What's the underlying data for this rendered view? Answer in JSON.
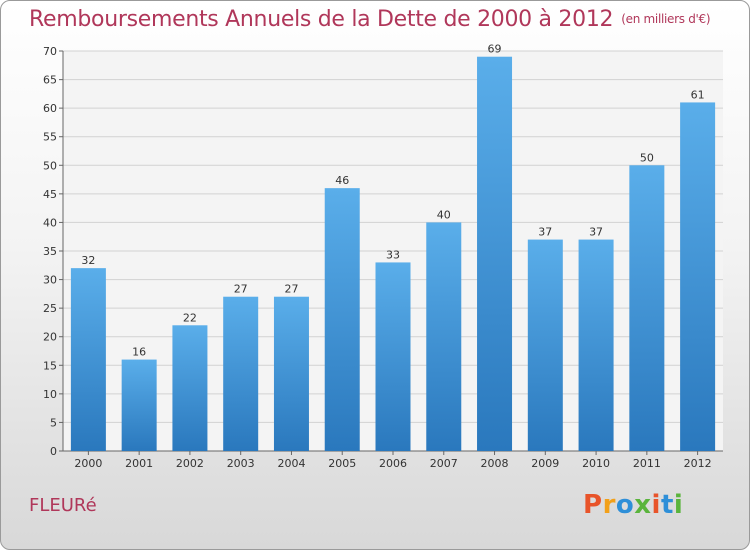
{
  "chart_data": {
    "type": "bar",
    "title": "Remboursements Annuels de la Dette de 2000 à 2012",
    "unit_note": "(en milliers d'€)",
    "categories": [
      "2000",
      "2001",
      "2002",
      "2003",
      "2004",
      "2005",
      "2006",
      "2007",
      "2008",
      "2009",
      "2010",
      "2011",
      "2012"
    ],
    "values": [
      32,
      16,
      22,
      27,
      27,
      46,
      33,
      40,
      69,
      37,
      37,
      50,
      61
    ],
    "ylim": [
      0,
      70
    ],
    "yticks": [
      0,
      5,
      10,
      15,
      20,
      25,
      30,
      35,
      40,
      45,
      50,
      55,
      60,
      65,
      70
    ],
    "grid": true,
    "bar_color": "#3f8fd6"
  },
  "footer": {
    "commune": "FLEURé",
    "logo_text": "Proxiti",
    "logo_colors": [
      "#e8542a",
      "#f2a019",
      "#2e8fd8",
      "#5ab43c",
      "#e8542a",
      "#2e8fd8",
      "#5ab43c"
    ]
  }
}
